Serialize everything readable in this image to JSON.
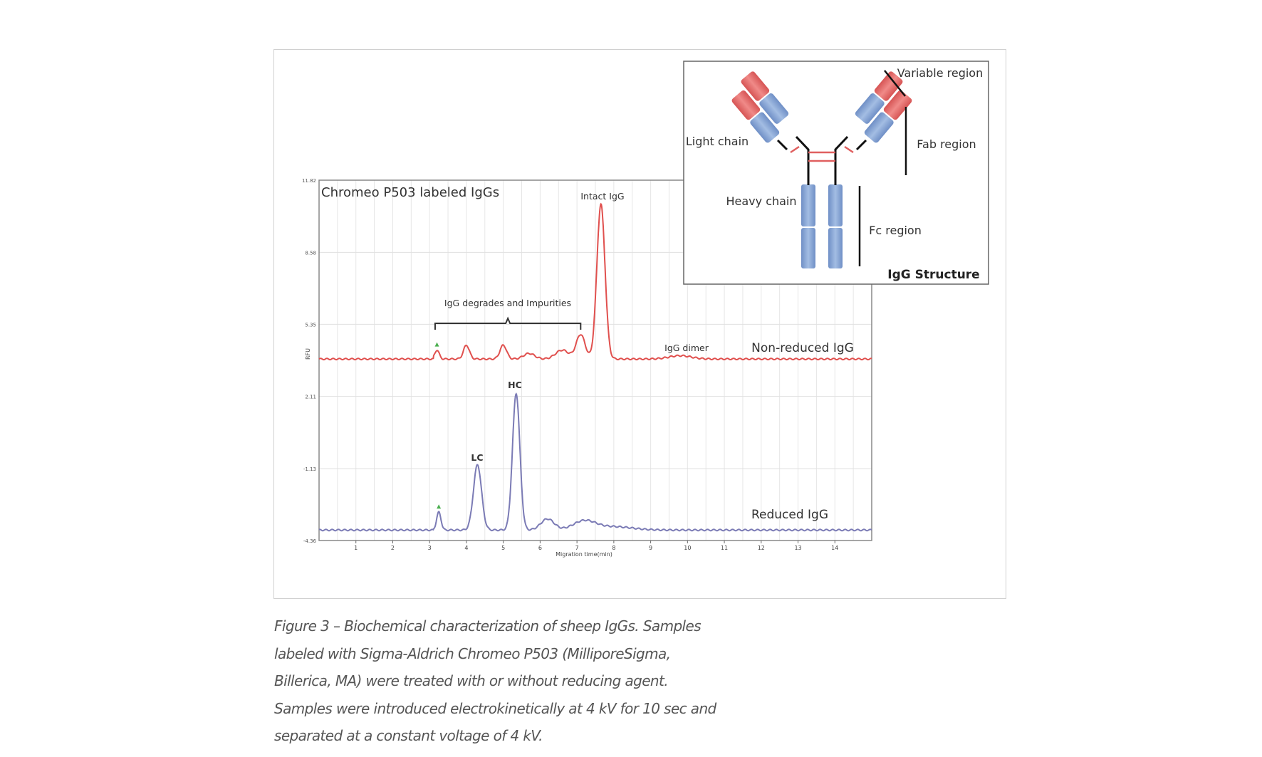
{
  "chart_data": {
    "type": "line",
    "title": "Chromeo P503 labeled IgGs",
    "xlabel": "Migration time(min)",
    "ylabel": "RFU",
    "xlim": [
      0,
      15
    ],
    "ylim": [
      -4.36,
      11.82
    ],
    "xticks": [
      "1",
      "2",
      "3",
      "4",
      "5",
      "6",
      "7",
      "8",
      "9",
      "10",
      "11",
      "12",
      "13",
      "14"
    ],
    "yticks": [
      "11.82",
      "8.58",
      "5.35",
      "2.11",
      "-1.13",
      "-4.36"
    ],
    "grid": true,
    "series": [
      {
        "name": "Non-reduced IgG",
        "color": "#e0504e",
        "baseline": 3.79,
        "start": 3.1,
        "peaks": [
          {
            "x": 3.2,
            "height": 0.4,
            "width": 0.06
          },
          {
            "x": 4.0,
            "height": 0.62,
            "width": 0.08
          },
          {
            "x": 5.0,
            "height": 0.62,
            "width": 0.09
          },
          {
            "x": 5.7,
            "height": 0.25,
            "width": 0.15
          },
          {
            "x": 6.6,
            "height": 0.4,
            "width": 0.18
          },
          {
            "x": 7.1,
            "height": 1.1,
            "width": 0.12
          },
          {
            "x": 7.65,
            "height": 6.95,
            "width": 0.11
          },
          {
            "x": 9.8,
            "height": 0.15,
            "width": 0.3
          }
        ]
      },
      {
        "name": "Reduced IgG",
        "color": "#7b7bb5",
        "baseline": -3.89,
        "start": 3.1,
        "peaks": [
          {
            "x": 3.25,
            "height": 0.8,
            "width": 0.06
          },
          {
            "x": 4.3,
            "height": 2.93,
            "width": 0.11
          },
          {
            "x": 5.35,
            "height": 6.14,
            "width": 0.1
          },
          {
            "x": 6.2,
            "height": 0.5,
            "width": 0.18
          },
          {
            "x": 7.2,
            "height": 0.4,
            "width": 0.3
          },
          {
            "x": 8.0,
            "height": 0.15,
            "width": 0.5
          }
        ]
      }
    ],
    "annotations": {
      "intact": "Intact IgG",
      "degrades": "IgG degrades and Impurities",
      "dimer": "IgG dimer",
      "hc": "HC",
      "lc": "LC",
      "nonreduced": "Non-reduced IgG",
      "reduced": "Reduced IgG"
    }
  },
  "inset": {
    "title": "IgG Structure",
    "variable_region": "Variable region",
    "fab_region": "Fab region",
    "fc_region": "Fc region",
    "light_chain": "Light chain",
    "heavy_chain": "Heavy chain",
    "colors": {
      "variable": "#e06868",
      "constant": "#7f9fd0",
      "disulfide": "#e06060"
    }
  },
  "caption": {
    "lines": [
      "Figure 3 – Biochemical characterization of sheep IgGs. Samples",
      "labeled with Sigma-Aldrich Chromeo P503 (MilliporeSigma,",
      "Billerica, MA) were treated with or without reducing agent.",
      "Samples were introduced electrokinetically at 4 kV for 10 sec and",
      "separated at a constant voltage of 4 kV."
    ]
  }
}
